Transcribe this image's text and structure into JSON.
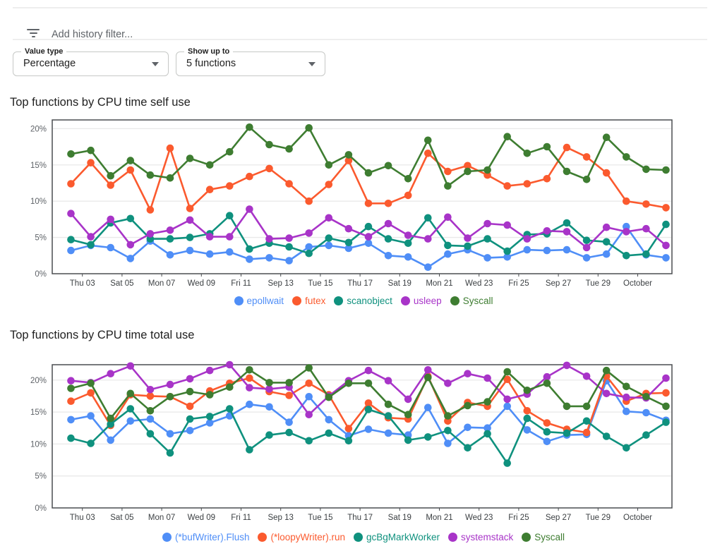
{
  "filter_bar": {
    "placeholder": "Add history filter...",
    "icon": "filter-list-icon"
  },
  "controls": {
    "value_type": {
      "label": "Value type",
      "value": "Percentage"
    },
    "show_up_to": {
      "label": "Show up to",
      "value": "5 functions"
    }
  },
  "chart_data": [
    {
      "type": "line",
      "title": "Top functions by CPU time self use",
      "x_tick_labels": [
        "Thu 03",
        "Sat 05",
        "Mon 07",
        "Wed 09",
        "Fri 11",
        "Sep 13",
        "Tue 15",
        "Thu 17",
        "Sat 19",
        "Mon 21",
        "Wed 23",
        "Fri 25",
        "Sep 27",
        "Tue 29",
        "October"
      ],
      "y_ticks": [
        0,
        5,
        10,
        15,
        20
      ],
      "y_tick_labels": [
        "0%",
        "5%",
        "10%",
        "15%",
        "20%"
      ],
      "ylim": [
        0,
        21.2
      ],
      "unit": "%",
      "grid": true,
      "legend_position": "bottom",
      "series": [
        {
          "name": "epollwait",
          "color": "#4f8ef7",
          "values": [
            3.2,
            3.9,
            3.6,
            2.1,
            4.5,
            2.6,
            3.2,
            2.7,
            3.0,
            2.0,
            2.2,
            1.8,
            3.7,
            3.9,
            3.5,
            4.2,
            2.5,
            2.3,
            0.9,
            2.7,
            3.3,
            2.2,
            2.3,
            3.3,
            3.2,
            3.3,
            2.2,
            2.7,
            6.5,
            2.6,
            2.2
          ]
        },
        {
          "name": "futex",
          "color": "#fb5a2e",
          "values": [
            12.4,
            15.3,
            12.2,
            14.3,
            8.8,
            17.3,
            9.0,
            11.6,
            12.1,
            13.4,
            14.5,
            12.4,
            10.0,
            12.3,
            15.6,
            9.7,
            9.7,
            10.8,
            16.6,
            14.1,
            14.9,
            13.6,
            12.1,
            12.4,
            13.1,
            17.4,
            16.1,
            13.9,
            10.0,
            9.6,
            9.1
          ]
        },
        {
          "name": "scanobject",
          "color": "#0f917e",
          "values": [
            4.7,
            4.0,
            7.0,
            7.6,
            4.8,
            4.8,
            5.0,
            5.5,
            8.0,
            3.4,
            4.2,
            3.7,
            2.8,
            4.9,
            4.3,
            6.5,
            4.8,
            4.2,
            7.7,
            3.9,
            3.8,
            4.8,
            3.1,
            5.4,
            5.5,
            7.0,
            4.6,
            4.4,
            2.5,
            2.7,
            6.8
          ]
        },
        {
          "name": "usleep",
          "color": "#a834c8",
          "values": [
            8.3,
            5.1,
            7.5,
            4.0,
            5.5,
            6.0,
            7.4,
            5.1,
            5.1,
            8.9,
            4.8,
            4.9,
            5.6,
            7.7,
            6.2,
            5.1,
            6.9,
            5.3,
            4.8,
            7.8,
            4.9,
            6.9,
            6.7,
            4.8,
            5.9,
            5.8,
            3.6,
            6.4,
            5.8,
            6.2,
            3.9
          ]
        },
        {
          "name": "Syscall",
          "color": "#3e7d31",
          "values": [
            16.5,
            17.0,
            13.5,
            15.6,
            13.6,
            13.2,
            15.9,
            15.0,
            16.8,
            20.2,
            17.8,
            17.2,
            20.1,
            15.0,
            16.4,
            13.9,
            14.9,
            13.1,
            18.4,
            12.1,
            14.1,
            14.3,
            18.9,
            16.6,
            17.5,
            14.1,
            13.0,
            18.8,
            16.1,
            14.4,
            14.3
          ]
        }
      ]
    },
    {
      "type": "line",
      "title": "Top functions by CPU time total use",
      "x_tick_labels": [
        "Thu 03",
        "Sat 05",
        "Mon 07",
        "Wed 09",
        "Fri 11",
        "Sep 13",
        "Tue 15",
        "Thu 17",
        "Sat 19",
        "Mon 21",
        "Wed 23",
        "Fri 25",
        "Sep 27",
        "Tue 29",
        "October"
      ],
      "y_ticks": [
        0,
        5,
        10,
        15,
        20
      ],
      "y_tick_labels": [
        "0%",
        "5%",
        "10%",
        "15%",
        "20%"
      ],
      "ylim": [
        0,
        22.4
      ],
      "unit": "%",
      "grid": true,
      "legend_position": "bottom",
      "series": [
        {
          "name": "(*bufWriter).Flush",
          "color": "#4f8ef7",
          "values": [
            13.8,
            14.4,
            10.6,
            13.6,
            13.9,
            11.6,
            12.1,
            13.3,
            14.4,
            16.2,
            15.8,
            13.4,
            17.4,
            13.8,
            11.3,
            12.3,
            11.7,
            11.4,
            15.7,
            10.1,
            12.6,
            12.5,
            15.9,
            12.2,
            10.4,
            11.4,
            11.5,
            19.9,
            15.1,
            14.9,
            13.7
          ]
        },
        {
          "name": "(*loopyWriter).run",
          "color": "#fb5a2e",
          "values": [
            16.7,
            18.0,
            12.9,
            17.7,
            17.5,
            17.4,
            15.9,
            18.3,
            19.5,
            20.3,
            18.2,
            17.6,
            19.5,
            17.7,
            12.4,
            16.4,
            14.1,
            13.9,
            20.6,
            13.6,
            16.5,
            15.9,
            20.1,
            15.2,
            13.3,
            12.3,
            11.8,
            20.6,
            16.7,
            17.9,
            18.0
          ]
        },
        {
          "name": "gcBgMarkWorker",
          "color": "#0f917e",
          "values": [
            10.9,
            10.1,
            13.1,
            15.5,
            11.6,
            8.6,
            13.9,
            14.3,
            15.5,
            9.1,
            11.4,
            11.8,
            10.5,
            11.7,
            10.5,
            15.4,
            14.4,
            10.6,
            11.1,
            12.1,
            9.4,
            11.6,
            7.0,
            14.0,
            11.9,
            11.7,
            13.6,
            11.2,
            9.4,
            11.4,
            13.4
          ]
        },
        {
          "name": "systemstack",
          "color": "#a834c8",
          "values": [
            19.9,
            19.6,
            21.0,
            22.2,
            18.5,
            19.3,
            20.2,
            21.5,
            22.4,
            18.8,
            18.6,
            18.9,
            14.6,
            17.5,
            19.9,
            21.5,
            19.9,
            17.0,
            21.6,
            19.5,
            21.0,
            20.3,
            17.0,
            17.8,
            20.5,
            22.3,
            20.6,
            17.9,
            17.3,
            17.2,
            20.3
          ]
        },
        {
          "name": "Syscall",
          "color": "#3e7d31",
          "values": [
            18.7,
            19.5,
            14.0,
            17.9,
            15.2,
            17.4,
            18.2,
            17.7,
            18.9,
            21.6,
            19.6,
            19.6,
            21.9,
            17.3,
            19.5,
            19.5,
            16.2,
            14.6,
            20.4,
            14.4,
            16.0,
            16.6,
            21.3,
            18.4,
            19.5,
            15.9,
            15.9,
            21.5,
            19.0,
            17.4,
            15.9
          ]
        }
      ]
    }
  ]
}
